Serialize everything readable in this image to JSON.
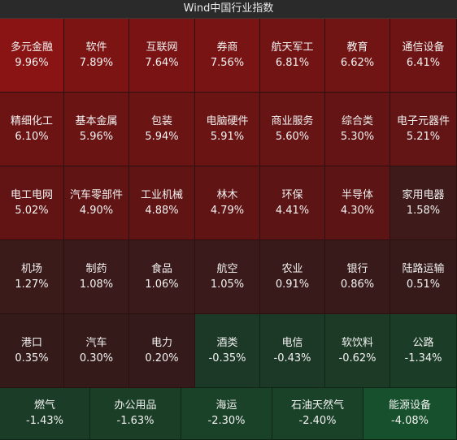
{
  "header": {
    "title": "Wind中国行业指数"
  },
  "rows": [
    [
      {
        "name": "多元金融",
        "pct": "9.96%",
        "color": "#8a1414"
      },
      {
        "name": "软件",
        "pct": "7.89%",
        "color": "#7d1414"
      },
      {
        "name": "互联网",
        "pct": "7.64%",
        "color": "#7a1414"
      },
      {
        "name": "券商",
        "pct": "7.56%",
        "color": "#791414"
      },
      {
        "name": "航天军工",
        "pct": "6.81%",
        "color": "#731414"
      },
      {
        "name": "教育",
        "pct": "6.62%",
        "color": "#711414"
      },
      {
        "name": "通信设备",
        "pct": "6.41%",
        "color": "#6f1414"
      }
    ],
    [
      {
        "name": "精细化工",
        "pct": "6.10%",
        "color": "#6c1414"
      },
      {
        "name": "基本金属",
        "pct": "5.96%",
        "color": "#6a1414"
      },
      {
        "name": "包装",
        "pct": "5.94%",
        "color": "#6a1414"
      },
      {
        "name": "电脑硬件",
        "pct": "5.91%",
        "color": "#6a1414"
      },
      {
        "name": "商业服务",
        "pct": "5.60%",
        "color": "#671414"
      },
      {
        "name": "综合类",
        "pct": "5.30%",
        "color": "#641414"
      },
      {
        "name": "电子元器件",
        "pct": "5.21%",
        "color": "#631414"
      }
    ],
    [
      {
        "name": "电工电网",
        "pct": "5.02%",
        "color": "#621414"
      },
      {
        "name": "汽车零部件",
        "pct": "4.90%",
        "color": "#611414"
      },
      {
        "name": "工业机械",
        "pct": "4.88%",
        "color": "#611414"
      },
      {
        "name": "林木",
        "pct": "4.79%",
        "color": "#601414"
      },
      {
        "name": "环保",
        "pct": "4.41%",
        "color": "#5d1414"
      },
      {
        "name": "半导体",
        "pct": "4.30%",
        "color": "#5c1414"
      },
      {
        "name": "家用电器",
        "pct": "1.58%",
        "color": "#3e1a1a"
      }
    ],
    [
      {
        "name": "机场",
        "pct": "1.27%",
        "color": "#3b1a1a"
      },
      {
        "name": "制药",
        "pct": "1.08%",
        "color": "#3a1a1a"
      },
      {
        "name": "食品",
        "pct": "1.06%",
        "color": "#3a1a1a"
      },
      {
        "name": "航空",
        "pct": "1.05%",
        "color": "#3a1a1a"
      },
      {
        "name": "农业",
        "pct": "0.91%",
        "color": "#391a1a"
      },
      {
        "name": "银行",
        "pct": "0.86%",
        "color": "#381a1a"
      },
      {
        "name": "陆路运输",
        "pct": "0.51%",
        "color": "#361a1a"
      }
    ],
    [
      {
        "name": "港口",
        "pct": "0.35%",
        "color": "#351a1a"
      },
      {
        "name": "汽车",
        "pct": "0.30%",
        "color": "#351a1a"
      },
      {
        "name": "电力",
        "pct": "0.20%",
        "color": "#341a1a"
      },
      {
        "name": "酒类",
        "pct": "-0.35%",
        "color": "#1c3826"
      },
      {
        "name": "电信",
        "pct": "-0.43%",
        "color": "#1c3826"
      },
      {
        "name": "软饮料",
        "pct": "-0.62%",
        "color": "#1c3a26"
      },
      {
        "name": "公路",
        "pct": "-1.34%",
        "color": "#1b3d27"
      }
    ],
    [
      {
        "name": "燃气",
        "pct": "-1.43%",
        "color": "#1b3d27"
      },
      {
        "name": "办公用品",
        "pct": "-1.63%",
        "color": "#1b3e27"
      },
      {
        "name": "海运",
        "pct": "-2.30%",
        "color": "#1a4228"
      },
      {
        "name": "石油天然气",
        "pct": "-2.40%",
        "color": "#1a4228"
      },
      {
        "name": "能源设备",
        "pct": "-4.08%",
        "color": "#17502c"
      }
    ]
  ]
}
